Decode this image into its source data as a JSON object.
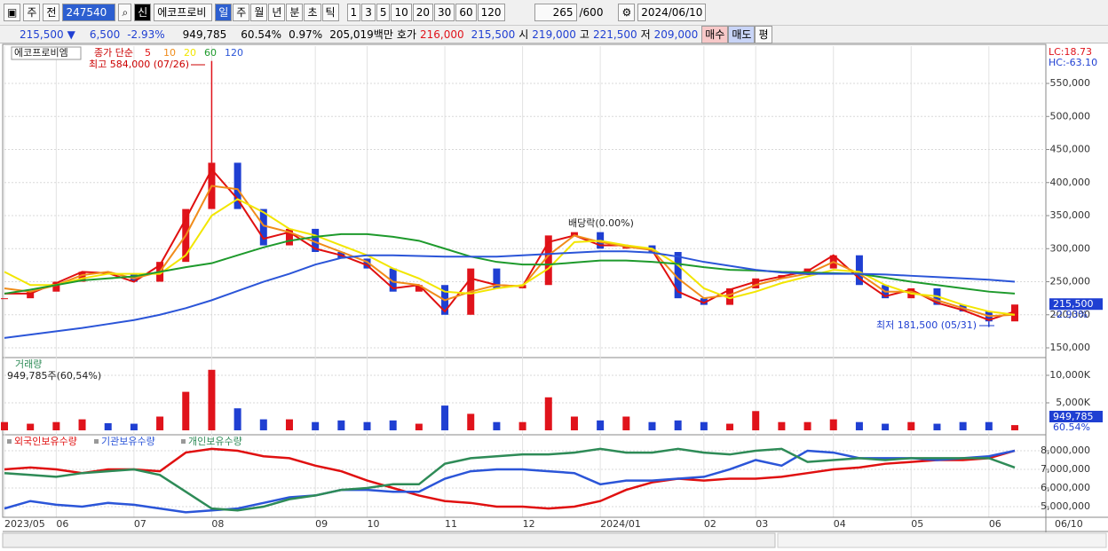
{
  "toolbar": {
    "items1": [
      "주",
      "전"
    ],
    "code": "247540",
    "badge": "신",
    "name": "에코프로비",
    "periods": [
      "일",
      "주",
      "월",
      "년",
      "분",
      "초",
      "틱"
    ],
    "numbers": [
      "1",
      "3",
      "5",
      "10",
      "20",
      "30",
      "60",
      "120"
    ],
    "count": 265,
    "max": "/600",
    "date": "2024/06/10"
  },
  "quote": {
    "price": "215,500",
    "arrow": "▼",
    "change": "6,500",
    "change_pct": "-2.93%",
    "volume": "949,785",
    "volume_ratio": "60.54%",
    "turnover": "0.97%",
    "amount": "205,019백만",
    "ask_label": "호가",
    "ask": "216,000",
    "bid": "215,500",
    "open_label": "시",
    "open": "219,000",
    "high_label": "고",
    "high": "221,500",
    "low_label": "저",
    "low": "209,000",
    "buy": "매수",
    "sell": "매도",
    "avg": "평"
  },
  "chart_data": [
    {
      "type": "candlestick",
      "title": "에코프로비엠",
      "legend_label": "종가 단순",
      "up_color": "#e0131b",
      "down_color": "#1f3fd2",
      "close": [
        225000,
        235000,
        250000,
        265000,
        262000,
        250000,
        280000,
        360000,
        430000,
        360000,
        305000,
        330000,
        295000,
        285000,
        270000,
        235000,
        245000,
        200000,
        270000,
        240000,
        245000,
        320000,
        325000,
        300000,
        305000,
        295000,
        225000,
        215000,
        240000,
        255000,
        260000,
        270000,
        290000,
        245000,
        225000,
        240000,
        215000,
        205000,
        190000,
        215500
      ],
      "series": [
        {
          "name": "5",
          "color": "#e01010",
          "values": [
            232000,
            232000,
            248000,
            265000,
            263000,
            250000,
            275000,
            345000,
            420000,
            375000,
            315000,
            325000,
            300000,
            290000,
            275000,
            240000,
            245000,
            205000,
            255000,
            245000,
            243000,
            310000,
            320000,
            305000,
            305000,
            298000,
            235000,
            218000,
            238000,
            250000,
            258000,
            266000,
            290000,
            255000,
            228000,
            238000,
            218000,
            207000,
            192000,
            205000
          ]
        },
        {
          "name": "10",
          "color": "#f08c1a",
          "values": [
            240000,
            235000,
            245000,
            260000,
            265000,
            255000,
            265000,
            320000,
            395000,
            390000,
            335000,
            325000,
            310000,
            295000,
            280000,
            250000,
            245000,
            222000,
            235000,
            245000,
            243000,
            290000,
            320000,
            310000,
            303000,
            298000,
            255000,
            225000,
            230000,
            245000,
            255000,
            262000,
            280000,
            262000,
            235000,
            235000,
            222000,
            210000,
            198000,
            200000
          ]
        },
        {
          "name": "20",
          "color": "#f2e600",
          "values": [
            265000,
            245000,
            245000,
            255000,
            262000,
            262000,
            262000,
            290000,
            350000,
            375000,
            355000,
            330000,
            320000,
            305000,
            290000,
            270000,
            255000,
            235000,
            232000,
            240000,
            245000,
            270000,
            310000,
            312000,
            305000,
            300000,
            275000,
            240000,
            225000,
            235000,
            248000,
            258000,
            268000,
            265000,
            245000,
            232000,
            228000,
            215000,
            205000,
            200000
          ]
        },
        {
          "name": "60",
          "color": "#1e9a2c",
          "values": [
            232000,
            238000,
            245000,
            252000,
            255000,
            258000,
            265000,
            272000,
            278000,
            290000,
            302000,
            312000,
            318000,
            322000,
            322000,
            318000,
            312000,
            300000,
            288000,
            280000,
            276000,
            276000,
            279000,
            282000,
            282000,
            280000,
            277000,
            272000,
            268000,
            267000,
            265000,
            264000,
            263000,
            262000,
            256000,
            250000,
            245000,
            240000,
            235000,
            232000
          ]
        },
        {
          "name": "120",
          "color": "#2b55d8",
          "values": [
            165000,
            170000,
            175000,
            180000,
            186000,
            192000,
            200000,
            210000,
            222000,
            236000,
            250000,
            262000,
            276000,
            286000,
            290000,
            290000,
            289000,
            288000,
            288000,
            288000,
            290000,
            292000,
            294000,
            296000,
            296000,
            294000,
            288000,
            280000,
            274000,
            268000,
            264000,
            262000,
            262000,
            262000,
            261000,
            259000,
            257000,
            255000,
            253000,
            250000
          ]
        }
      ],
      "ylim": [
        136600,
        606400
      ],
      "yticks": [
        {
          "value": 150000,
          "label": "150,000"
        },
        {
          "value": 200000,
          "label": "200,000"
        },
        {
          "value": 250000,
          "label": "250,000"
        },
        {
          "value": 300000,
          "label": "300,000"
        },
        {
          "value": 350000,
          "label": "350,000"
        },
        {
          "value": 400000,
          "label": "400,000"
        },
        {
          "value": 450000,
          "label": "450,000"
        },
        {
          "value": 500000,
          "label": "500,000"
        },
        {
          "value": 550000,
          "label": "550,000"
        }
      ],
      "annotations": [
        {
          "text": "최고 584,000 (07/26)",
          "value": 584000
        },
        {
          "text": "배당락(0.00%)"
        },
        {
          "text": "최저 181,500 (05/31)",
          "value": 181500
        }
      ],
      "last_price_label": "215,500",
      "last_change_label": "-2.93%",
      "lc": "LC:18.73",
      "hc": "HC:-63.10"
    },
    {
      "type": "bar",
      "title": "거래량",
      "subtitle": "949,785주(60,54%)",
      "values": [
        1500,
        1200,
        1500,
        2000,
        1300,
        1200,
        2500,
        7000,
        11000,
        4000,
        2000,
        2000,
        1500,
        1800,
        1500,
        1800,
        1200,
        4500,
        3000,
        1500,
        1500,
        6000,
        2500,
        1800,
        2500,
        1500,
        1800,
        1500,
        1200,
        3500,
        1500,
        1500,
        2000,
        1500,
        1200,
        1500,
        1200,
        1500,
        1500,
        949.785
      ],
      "ylim": [
        0,
        12900
      ],
      "yticks": [
        {
          "value": 5000,
          "label": "5,000K"
        },
        {
          "value": 10000,
          "label": "10,000K"
        }
      ],
      "last_label": "949,785",
      "last_ratio": "60.54%"
    },
    {
      "type": "line",
      "series": [
        {
          "name": "외국인보유수량",
          "color": "#e01010",
          "values": [
            7000000,
            7100000,
            7000000,
            6800000,
            7000000,
            7000000,
            6900000,
            7900000,
            8100000,
            8000000,
            7700000,
            7600000,
            7200000,
            6900000,
            6400000,
            6000000,
            5600000,
            5300000,
            5200000,
            5000000,
            5000000,
            4900000,
            5000000,
            5300000,
            5900000,
            6300000,
            6500000,
            6400000,
            6500000,
            6500000,
            6600000,
            6800000,
            7000000,
            7100000,
            7300000,
            7400000,
            7500000,
            7500000,
            7600000,
            8000000
          ]
        },
        {
          "name": "기관보유수량",
          "color": "#2b55d8",
          "values": [
            4900000,
            5300000,
            5100000,
            5000000,
            5200000,
            5100000,
            4900000,
            4700000,
            4800000,
            4900000,
            5200000,
            5500000,
            5600000,
            5900000,
            5900000,
            5800000,
            5800000,
            6500000,
            6900000,
            7000000,
            7000000,
            6900000,
            6800000,
            6200000,
            6400000,
            6400000,
            6500000,
            6600000,
            7000000,
            7500000,
            7200000,
            8000000,
            7900000,
            7600000,
            7600000,
            7600000,
            7500000,
            7600000,
            7700000,
            8000000
          ]
        },
        {
          "name": "개인보유수량",
          "color": "#2e8b57",
          "values": [
            6800000,
            6700000,
            6600000,
            6800000,
            6900000,
            7000000,
            6700000,
            5800000,
            4900000,
            4800000,
            5000000,
            5400000,
            5600000,
            5900000,
            6000000,
            6200000,
            6200000,
            7300000,
            7600000,
            7700000,
            7800000,
            7800000,
            7900000,
            8100000,
            7900000,
            7900000,
            8100000,
            7900000,
            7800000,
            8000000,
            8100000,
            7400000,
            7500000,
            7600000,
            7500000,
            7600000,
            7600000,
            7600000,
            7600000,
            7100000
          ]
        }
      ],
      "ylim": [
        4430000,
        8760000
      ],
      "yticks": [
        {
          "value": 5000000,
          "label": "5,000,000"
        },
        {
          "value": 6000000,
          "label": "6,000,000"
        },
        {
          "value": 7000000,
          "label": "7,000,000"
        },
        {
          "value": 8000000,
          "label": "8,000,000"
        }
      ],
      "categories": [
        "2023/05",
        null,
        "06",
        null,
        null,
        "07",
        null,
        null,
        "08",
        null,
        null,
        null,
        "09",
        null,
        "10",
        null,
        null,
        "11",
        null,
        null,
        "12",
        null,
        null,
        "2024/01",
        null,
        null,
        null,
        "02",
        null,
        "03",
        null,
        null,
        "04",
        null,
        null,
        "05",
        null,
        null,
        "06",
        null
      ],
      "x_end_label": "06/10"
    }
  ]
}
